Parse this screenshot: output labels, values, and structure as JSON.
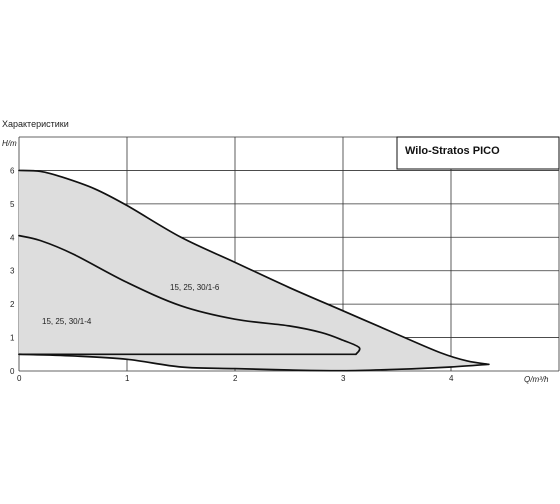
{
  "chart_data": {
    "type": "line",
    "heading": "Характеристики",
    "legend_title": "Wilo-Stratos PICO",
    "ylabel": "H/m",
    "xlabel": "Q/m³/h",
    "xlim": [
      0,
      5
    ],
    "ylim": [
      0,
      7
    ],
    "x_ticks": [
      0,
      1,
      2,
      3,
      4
    ],
    "y_ticks": [
      0,
      1,
      2,
      3,
      4,
      5,
      6
    ],
    "grid": true,
    "fill_color": "#dddddd",
    "line_color": "#111111",
    "series": [
      {
        "name": "15, 25, 30/1-6",
        "role": "max-curve",
        "points": [
          [
            0,
            6.0
          ],
          [
            0.2,
            5.97
          ],
          [
            0.4,
            5.8
          ],
          [
            0.7,
            5.45
          ],
          [
            1.0,
            4.95
          ],
          [
            1.5,
            4.0
          ],
          [
            2.0,
            3.25
          ],
          [
            2.5,
            2.5
          ],
          [
            3.0,
            1.8
          ],
          [
            3.5,
            1.1
          ],
          [
            3.9,
            0.55
          ],
          [
            4.15,
            0.3
          ],
          [
            4.35,
            0.2
          ]
        ]
      },
      {
        "name": "15, 25, 30/1-4",
        "role": "mid-curve",
        "points": [
          [
            0,
            4.05
          ],
          [
            0.2,
            3.9
          ],
          [
            0.5,
            3.5
          ],
          [
            1.0,
            2.65
          ],
          [
            1.5,
            1.95
          ],
          [
            2.0,
            1.55
          ],
          [
            2.5,
            1.35
          ],
          [
            2.8,
            1.15
          ],
          [
            3.0,
            0.92
          ],
          [
            3.15,
            0.7
          ],
          [
            3.12,
            0.5
          ]
        ]
      },
      {
        "name": "",
        "role": "min-level",
        "points": [
          [
            0,
            0.5
          ],
          [
            3.12,
            0.5
          ]
        ]
      },
      {
        "name": "",
        "role": "min-curve",
        "points": [
          [
            0,
            0.5
          ],
          [
            0.5,
            0.45
          ],
          [
            1.0,
            0.35
          ],
          [
            1.5,
            0.12
          ],
          [
            2.0,
            0.07
          ],
          [
            2.5,
            0.03
          ],
          [
            3.0,
            0.01
          ],
          [
            3.5,
            0.05
          ],
          [
            4.0,
            0.12
          ],
          [
            4.35,
            0.2
          ]
        ]
      }
    ]
  }
}
